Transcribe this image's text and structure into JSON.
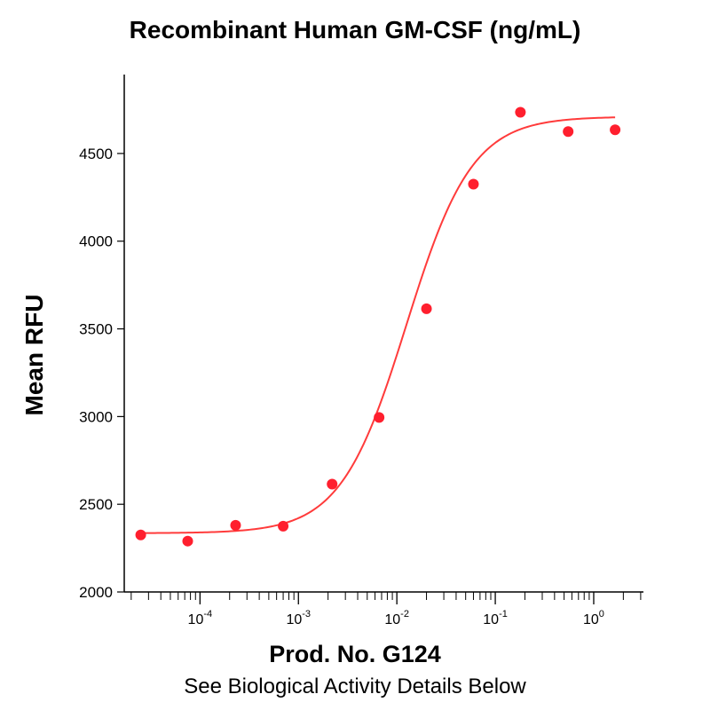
{
  "chart_data": {
    "type": "scatter",
    "title": "Recombinant Human GM-CSF (ng/mL)",
    "xlabel": "Prod. No. G124",
    "ylabel": "Mean RFU",
    "subtitle": "See Biological Activity Details Below",
    "x_scale": "log",
    "xlim": [
      1.7e-05,
      3.2
    ],
    "ylim": [
      2000,
      4950
    ],
    "y_ticks": [
      2000,
      2500,
      3000,
      3500,
      4000,
      4500
    ],
    "x_tick_labels": [
      {
        "value": 0.0001,
        "base": "10",
        "exp": "-4"
      },
      {
        "value": 0.001,
        "base": "10",
        "exp": "-3"
      },
      {
        "value": 0.01,
        "base": "10",
        "exp": "-2"
      },
      {
        "value": 0.1,
        "base": "10",
        "exp": "-1"
      },
      {
        "value": 1,
        "base": "10",
        "exp": "0"
      }
    ],
    "grid": false,
    "point_color": "#ff1f2e",
    "curve_color": "#ff3b3b",
    "points": [
      {
        "x": 2.5e-05,
        "y": 2325
      },
      {
        "x": 7.5e-05,
        "y": 2290
      },
      {
        "x": 0.00023,
        "y": 2380
      },
      {
        "x": 0.0007,
        "y": 2375
      },
      {
        "x": 0.0022,
        "y": 2615
      },
      {
        "x": 0.0066,
        "y": 2995
      },
      {
        "x": 0.02,
        "y": 3615
      },
      {
        "x": 0.06,
        "y": 4325
      },
      {
        "x": 0.18,
        "y": 4735
      },
      {
        "x": 0.55,
        "y": 4625
      },
      {
        "x": 1.65,
        "y": 4635
      }
    ],
    "fit": {
      "model": "4PL",
      "bottom": 2335,
      "top": 4710,
      "ec50": 0.0125,
      "hill": 1.3,
      "x_range": [
        2.5e-05,
        1.65
      ]
    }
  }
}
